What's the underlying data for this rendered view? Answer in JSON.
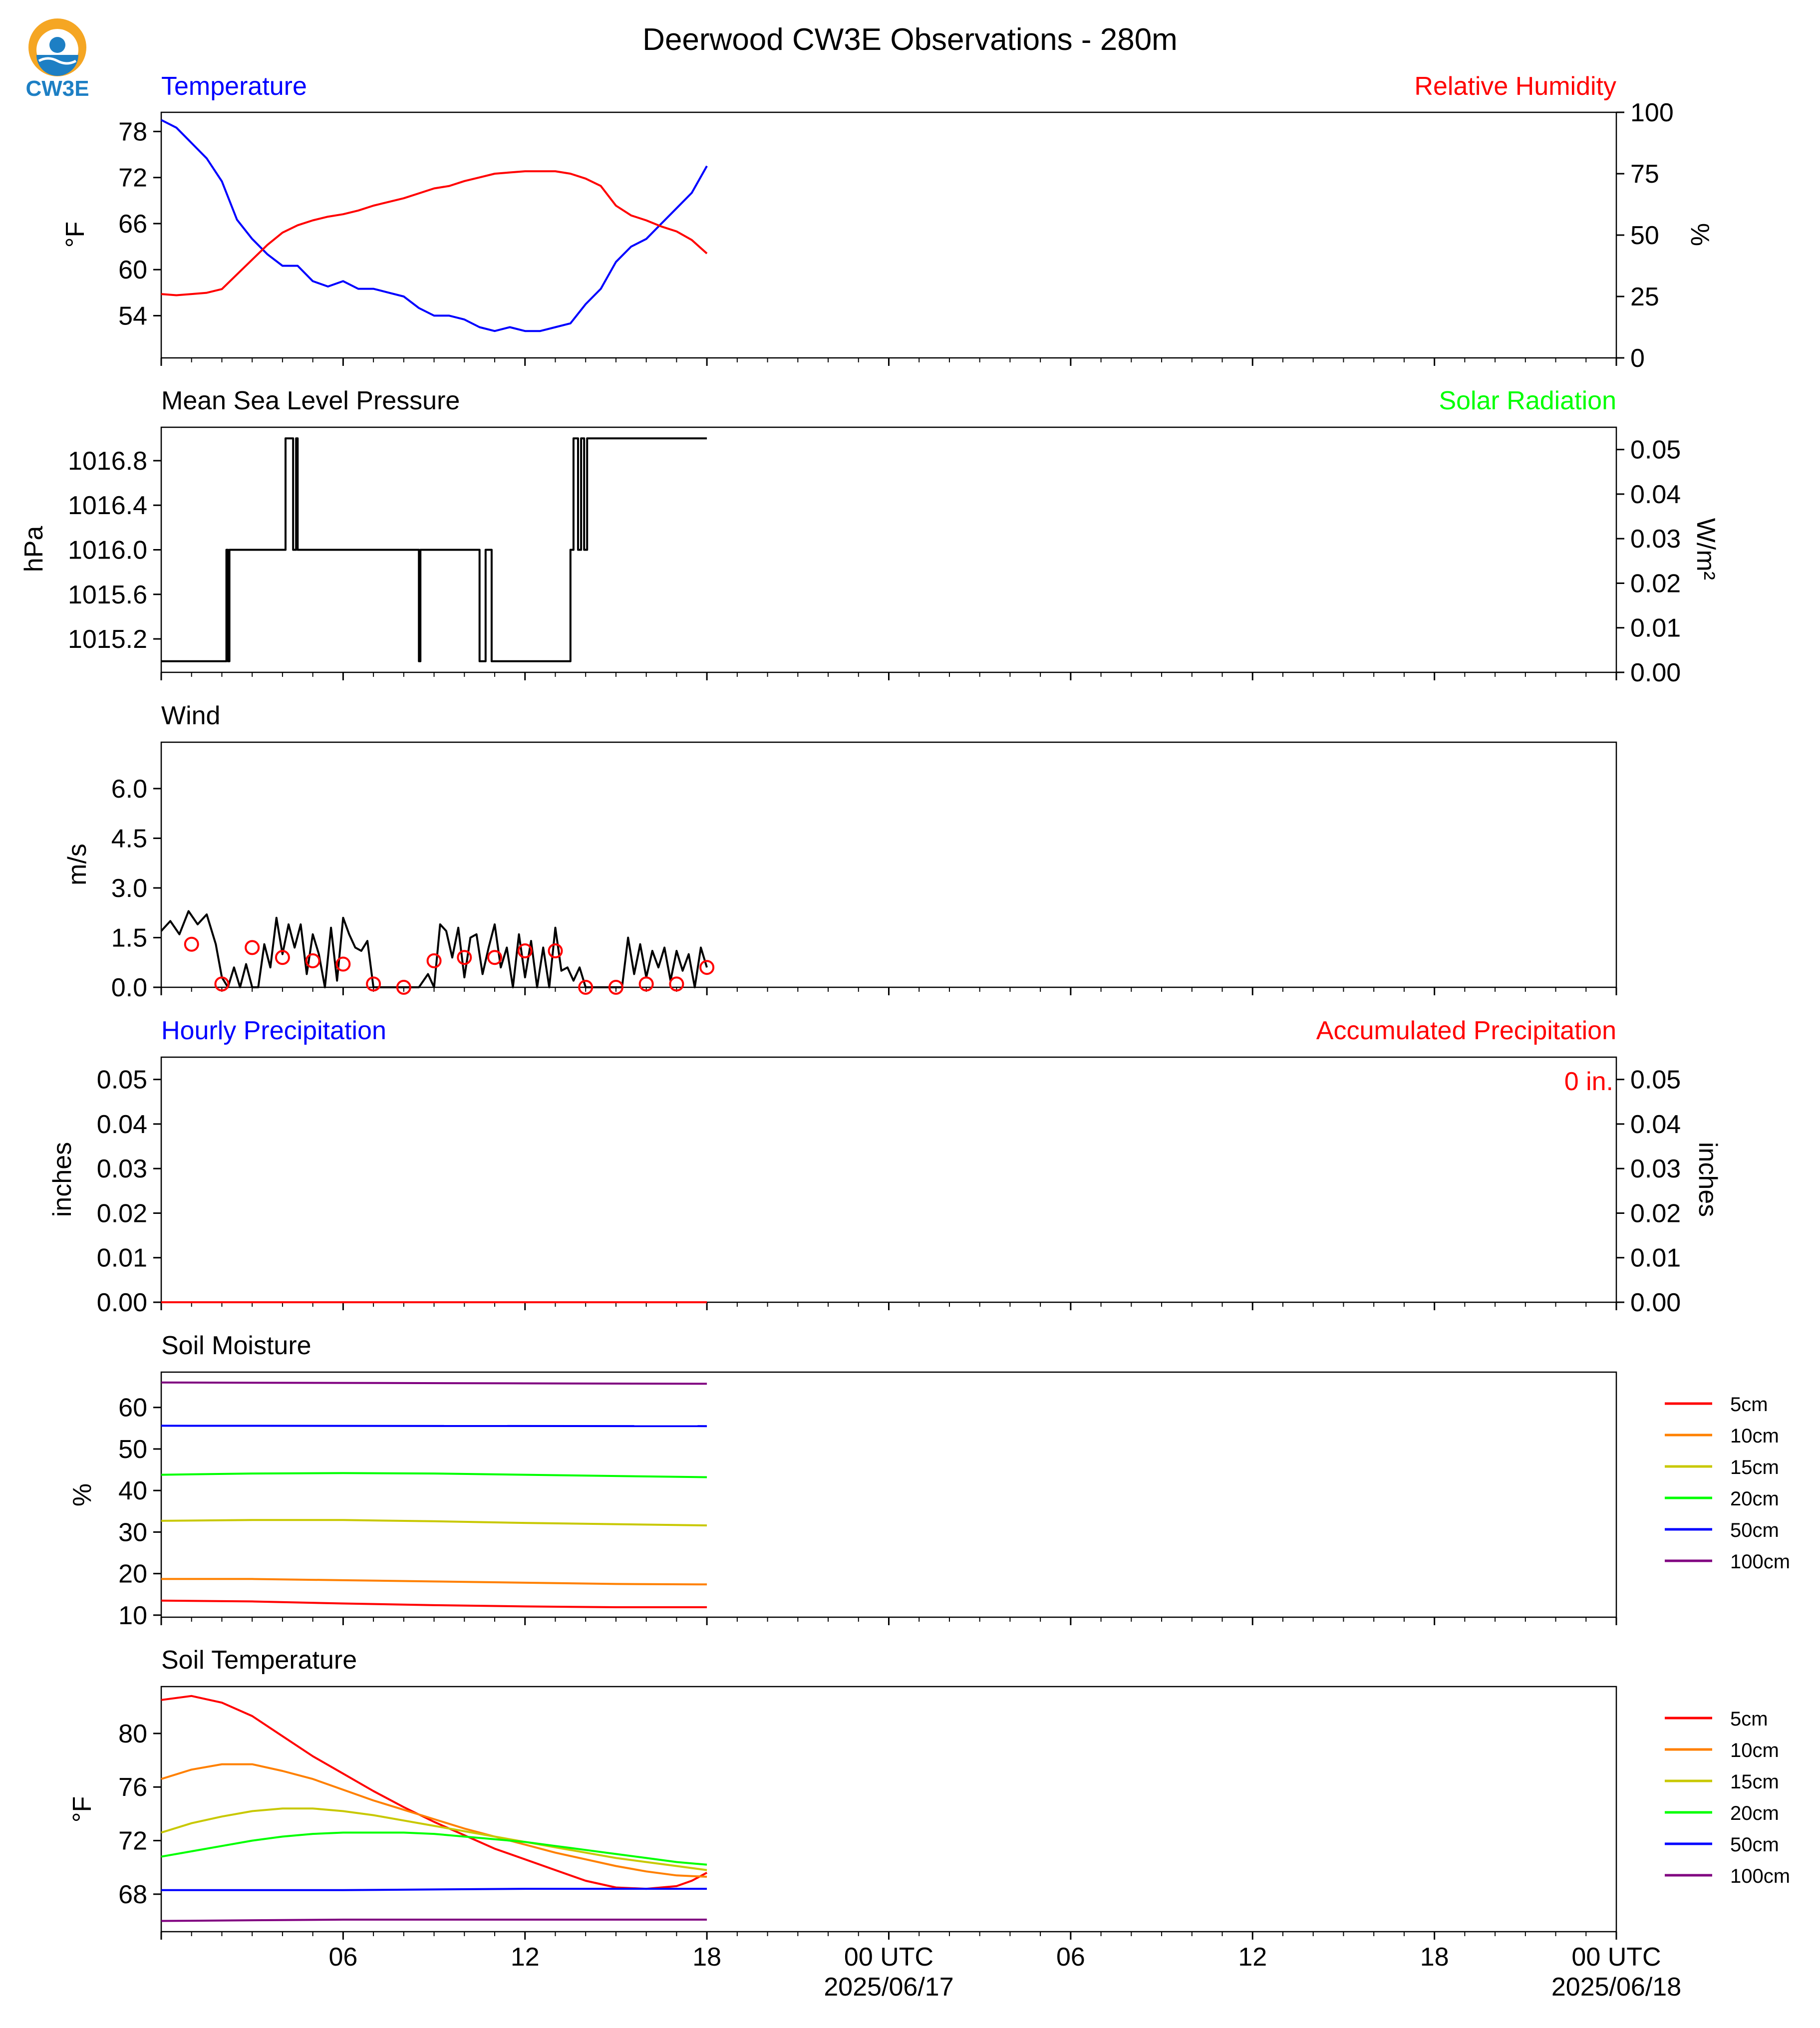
{
  "title": "Deerwood CW3E Observations - 280m",
  "logo": {
    "text": "CW3E",
    "icon": "cw3e-logo-icon",
    "colors": [
      "#f5a623",
      "#1d7fc4"
    ]
  },
  "x_axis": {
    "range_hours": [
      0,
      48
    ],
    "ticks": [
      {
        "hour": 6,
        "label": "06",
        "label2": ""
      },
      {
        "hour": 12,
        "label": "12",
        "label2": ""
      },
      {
        "hour": 18,
        "label": "18",
        "label2": ""
      },
      {
        "hour": 24,
        "label": "00 UTC",
        "label2": "2025/06/17"
      },
      {
        "hour": 30,
        "label": "06",
        "label2": ""
      },
      {
        "hour": 36,
        "label": "12",
        "label2": ""
      },
      {
        "hour": 42,
        "label": "18",
        "label2": ""
      },
      {
        "hour": 48,
        "label": "00 UTC",
        "label2": "2025/06/18"
      }
    ]
  },
  "panel_titles": {
    "temperature": "Temperature",
    "humidity": "Relative Humidity",
    "pressure": "Mean Sea Level Pressure",
    "solar": "Solar Radiation",
    "wind": "Wind",
    "hourly_precip": "Hourly Precipitation",
    "accum_precip": "Accumulated Precipitation",
    "soil_moisture": "Soil Moisture",
    "soil_temperature": "Soil Temperature"
  },
  "axis_labels": {
    "temp_left": "°F",
    "temp_right": "%",
    "pressure_left": "hPa",
    "pressure_right": "W/m²",
    "wind_left": "m/s",
    "precip_left": "inches",
    "precip_right": "inches",
    "soilm_left": "%",
    "soilt_left": "°F"
  },
  "accum_precip_total": "0 in.",
  "colors": {
    "temperature": "#0000ff",
    "humidity": "#ff0000",
    "pressure": "#000000",
    "solar": "#00ff00",
    "wind": "#000000",
    "wind_barb": "#ff0000",
    "hourly_precip": "#0000ff",
    "accum_precip": "#ff0000",
    "depths": [
      "#ff0000",
      "#ff8000",
      "#c8c800",
      "#00ff00",
      "#0000ff",
      "#800080"
    ]
  },
  "legend_depths": [
    "5cm",
    "10cm",
    "15cm",
    "20cm",
    "50cm",
    "100cm"
  ],
  "chart_data": [
    {
      "id": "temp-rh",
      "type": "line",
      "title": "Temperature",
      "ylabel": "°F",
      "ylim": [
        48.5,
        80.5
      ],
      "yticks": [
        54,
        60,
        66,
        72,
        78
      ],
      "y2label": "%",
      "y2lim": [
        0,
        100
      ],
      "y2ticks": [
        0,
        25,
        50,
        75,
        100
      ],
      "series": [
        {
          "name": "Temperature",
          "axis": "left",
          "x": [
            0,
            0.5,
            1,
            1.5,
            2,
            2.5,
            3,
            3.5,
            4,
            4.5,
            5,
            5.5,
            6,
            6.5,
            7,
            7.5,
            8,
            8.5,
            9,
            9.5,
            10,
            10.5,
            11,
            11.5,
            12,
            12.5,
            13,
            13.5,
            14,
            14.5,
            15,
            15.5,
            16,
            16.5,
            17,
            17.5,
            18
          ],
          "y": [
            79.5,
            78.5,
            76.5,
            74.5,
            71.5,
            66.5,
            64,
            62,
            60.5,
            60.5,
            58.5,
            57.8,
            58.5,
            57.5,
            57.5,
            57,
            56.5,
            55,
            54,
            54,
            53.5,
            52.5,
            52,
            52.5,
            52,
            52,
            52.5,
            53,
            55.5,
            57.5,
            61,
            63,
            64,
            66,
            68,
            70,
            73.5
          ]
        },
        {
          "name": "Relative Humidity",
          "axis": "right",
          "x": [
            0,
            0.5,
            1,
            1.5,
            2,
            2.5,
            3,
            3.5,
            4,
            4.5,
            5,
            5.5,
            6,
            6.5,
            7,
            7.5,
            8,
            8.5,
            9,
            9.5,
            10,
            10.5,
            11,
            11.5,
            12,
            12.5,
            13,
            13.5,
            14,
            14.5,
            15,
            15.5,
            16,
            16.5,
            17,
            17.5,
            18
          ],
          "y": [
            26,
            25.5,
            26,
            26.5,
            28,
            34,
            40,
            46,
            51,
            54,
            56,
            57.5,
            58.5,
            60,
            62,
            63.5,
            65,
            67,
            69,
            70,
            72,
            73.5,
            75,
            75.5,
            76,
            76,
            76,
            75,
            73,
            70,
            62,
            58,
            56,
            53.5,
            51.5,
            48,
            42.5
          ]
        }
      ]
    },
    {
      "id": "pressure",
      "type": "line",
      "title": "Mean Sea Level Pressure",
      "ylabel": "hPa",
      "ylim": [
        1014.9,
        1017.1
      ],
      "yticks": [
        1015.2,
        1015.6,
        1016.0,
        1016.4,
        1016.8
      ],
      "y2label": "W/m²",
      "y2lim": [
        0,
        0.055
      ],
      "y2ticks": [
        0.0,
        0.01,
        0.02,
        0.03,
        0.04,
        0.05
      ],
      "series": [
        {
          "name": "Mean Sea Level Pressure",
          "axis": "left",
          "x": [
            0,
            2.15,
            2.15,
            2.2,
            2.2,
            2.25,
            2.25,
            4.1,
            4.1,
            4.35,
            4.35,
            4.45,
            4.45,
            4.5,
            4.5,
            4.6,
            4.6,
            8.5,
            8.5,
            8.55,
            8.55,
            10.5,
            10.5,
            10.7,
            10.7,
            10.9,
            10.9,
            13.5,
            13.5,
            13.6,
            13.6,
            13.75,
            13.75,
            13.85,
            13.85,
            13.95,
            13.95,
            14.05,
            14.05,
            18
          ],
          "y": [
            1015.0,
            1015.0,
            1016.0,
            1016.0,
            1015.0,
            1015.0,
            1016.0,
            1016.0,
            1017.0,
            1017.0,
            1016.0,
            1016.0,
            1017.0,
            1017.0,
            1016.0,
            1016.0,
            1016.0,
            1016.0,
            1015.0,
            1015.0,
            1016.0,
            1016.0,
            1015.0,
            1015.0,
            1016.0,
            1016.0,
            1015.0,
            1015.0,
            1016.0,
            1016.0,
            1017.0,
            1017.0,
            1016.0,
            1016.0,
            1017.0,
            1017.0,
            1016.0,
            1016.0,
            1017.0,
            1017.0
          ]
        },
        {
          "name": "Solar Radiation",
          "axis": "right",
          "x": [],
          "y": []
        }
      ]
    },
    {
      "id": "wind",
      "type": "line",
      "title": "Wind",
      "ylabel": "m/s",
      "ylim": [
        0,
        7.4
      ],
      "yticks": [
        0.0,
        1.5,
        3.0,
        4.5,
        6.0
      ],
      "series": [
        {
          "name": "Wind Speed",
          "x": [
            0,
            0.3,
            0.6,
            0.9,
            1.2,
            1.5,
            1.8,
            2.0,
            2.2,
            2.4,
            2.6,
            2.8,
            3.0,
            3.2,
            3.4,
            3.6,
            3.8,
            4.0,
            4.2,
            4.4,
            4.6,
            4.8,
            5.0,
            5.2,
            5.4,
            5.6,
            5.8,
            6.0,
            6.2,
            6.4,
            6.6,
            6.8,
            7.0,
            7.5,
            8.0,
            8.5,
            8.8,
            9.0,
            9.2,
            9.4,
            9.6,
            9.8,
            10.0,
            10.2,
            10.4,
            10.6,
            10.8,
            11.0,
            11.2,
            11.4,
            11.6,
            11.8,
            12.0,
            12.2,
            12.4,
            12.6,
            12.8,
            13.0,
            13.2,
            13.4,
            13.6,
            13.8,
            14.0,
            14.5,
            15.0,
            15.2,
            15.4,
            15.6,
            15.8,
            16.0,
            16.2,
            16.4,
            16.6,
            16.8,
            17.0,
            17.2,
            17.4,
            17.6,
            17.8,
            18.0
          ],
          "y": [
            1.7,
            2.0,
            1.6,
            2.3,
            1.9,
            2.2,
            1.3,
            0.3,
            0.0,
            0.6,
            0.0,
            0.7,
            0.0,
            0.0,
            1.3,
            0.6,
            2.1,
            1.0,
            1.9,
            1.2,
            1.9,
            0.4,
            1.6,
            1.0,
            0.0,
            1.8,
            0.2,
            2.1,
            1.6,
            1.2,
            1.1,
            1.4,
            0.0,
            0.0,
            0.0,
            0.0,
            0.4,
            0.0,
            1.9,
            1.7,
            0.9,
            1.8,
            0.3,
            1.5,
            1.6,
            0.4,
            1.2,
            1.9,
            0.6,
            1.2,
            0.0,
            1.6,
            0.3,
            1.4,
            0.0,
            1.2,
            0.0,
            1.8,
            0.5,
            0.6,
            0.2,
            0.6,
            0.0,
            0.0,
            0.0,
            0.0,
            1.5,
            0.4,
            1.3,
            0.3,
            1.1,
            0.6,
            1.2,
            0.2,
            1.1,
            0.5,
            1.0,
            0.0,
            1.2,
            0.6
          ]
        },
        {
          "name": "Wind Direction Markers",
          "type": "scatter",
          "x": [
            1,
            2,
            3,
            4,
            5,
            6,
            7,
            8,
            9,
            10,
            11,
            12,
            13,
            14,
            15,
            16,
            17,
            18
          ],
          "y": [
            1.3,
            0.1,
            1.2,
            0.9,
            0.8,
            0.7,
            0.1,
            0.0,
            0.8,
            0.9,
            0.9,
            1.1,
            1.1,
            0.0,
            0.0,
            0.1,
            0.1,
            0.6
          ]
        }
      ]
    },
    {
      "id": "precip",
      "type": "line",
      "title": "Hourly Precipitation",
      "ylabel": "inches",
      "ylim": [
        0,
        0.055
      ],
      "yticks": [
        0.0,
        0.01,
        0.02,
        0.03,
        0.04,
        0.05
      ],
      "y2label": "inches",
      "y2lim": [
        0,
        0.055
      ],
      "y2ticks": [
        0.0,
        0.01,
        0.02,
        0.03,
        0.04,
        0.05
      ],
      "series": [
        {
          "name": "Hourly Precipitation",
          "axis": "left",
          "x": [
            0,
            18
          ],
          "y": [
            0,
            0
          ]
        },
        {
          "name": "Accumulated Precipitation",
          "axis": "right",
          "x": [
            0,
            18
          ],
          "y": [
            0,
            0
          ]
        }
      ]
    },
    {
      "id": "soil-moisture",
      "type": "line",
      "title": "Soil Moisture",
      "ylabel": "%",
      "ylim": [
        9.5,
        68.5
      ],
      "yticks": [
        10,
        20,
        30,
        40,
        50,
        60
      ],
      "series": [
        {
          "name": "5cm",
          "x": [
            0,
            3,
            6,
            9,
            12,
            15,
            18
          ],
          "y": [
            13.5,
            13.3,
            12.8,
            12.4,
            12.1,
            11.9,
            11.9
          ]
        },
        {
          "name": "10cm",
          "x": [
            0,
            3,
            6,
            9,
            12,
            15,
            18
          ],
          "y": [
            18.7,
            18.7,
            18.4,
            18.1,
            17.8,
            17.5,
            17.4
          ]
        },
        {
          "name": "15cm",
          "x": [
            0,
            3,
            6,
            9,
            12,
            15,
            18
          ],
          "y": [
            32.7,
            32.9,
            32.9,
            32.6,
            32.2,
            31.9,
            31.6
          ]
        },
        {
          "name": "20cm",
          "x": [
            0,
            3,
            6,
            9,
            12,
            15,
            18
          ],
          "y": [
            43.8,
            44.1,
            44.2,
            44.1,
            43.8,
            43.5,
            43.2
          ]
        },
        {
          "name": "50cm",
          "x": [
            0,
            18
          ],
          "y": [
            55.6,
            55.5
          ]
        },
        {
          "name": "100cm",
          "x": [
            0,
            6,
            12,
            18
          ],
          "y": [
            66.0,
            65.9,
            65.8,
            65.7
          ]
        }
      ]
    },
    {
      "id": "soil-temperature",
      "type": "line",
      "title": "Soil Temperature",
      "ylabel": "°F",
      "ylim": [
        65.2,
        83.5
      ],
      "yticks": [
        68,
        72,
        76,
        80
      ],
      "series": [
        {
          "name": "5cm",
          "x": [
            0,
            1,
            2,
            3,
            4,
            5,
            6,
            7,
            8,
            9,
            10,
            11,
            12,
            13,
            14,
            15,
            16,
            17,
            17.5,
            18
          ],
          "y": [
            82.5,
            82.8,
            82.3,
            81.3,
            79.8,
            78.3,
            77.0,
            75.7,
            74.5,
            73.4,
            72.4,
            71.4,
            70.6,
            69.8,
            69.0,
            68.5,
            68.4,
            68.6,
            69.0,
            69.6
          ]
        },
        {
          "name": "10cm",
          "x": [
            0,
            1,
            2,
            3,
            4,
            5,
            6,
            7,
            8,
            9,
            10,
            11,
            12,
            13,
            14,
            15,
            16,
            17,
            18
          ],
          "y": [
            76.6,
            77.3,
            77.7,
            77.7,
            77.2,
            76.6,
            75.8,
            75.0,
            74.3,
            73.6,
            72.9,
            72.3,
            71.7,
            71.1,
            70.6,
            70.1,
            69.7,
            69.4,
            69.3
          ]
        },
        {
          "name": "15cm",
          "x": [
            0,
            1,
            2,
            3,
            4,
            5,
            6,
            7,
            8,
            9,
            10,
            11,
            12,
            13,
            14,
            15,
            16,
            17,
            18
          ],
          "y": [
            72.6,
            73.3,
            73.8,
            74.2,
            74.4,
            74.4,
            74.2,
            73.9,
            73.5,
            73.1,
            72.7,
            72.3,
            71.9,
            71.5,
            71.1,
            70.7,
            70.4,
            70.1,
            69.8
          ]
        },
        {
          "name": "20cm",
          "x": [
            0,
            1,
            2,
            3,
            4,
            5,
            6,
            7,
            8,
            9,
            10,
            11,
            12,
            13,
            14,
            15,
            16,
            17,
            18
          ],
          "y": [
            70.8,
            71.2,
            71.6,
            72.0,
            72.3,
            72.5,
            72.6,
            72.6,
            72.6,
            72.5,
            72.3,
            72.1,
            71.9,
            71.6,
            71.3,
            71.0,
            70.7,
            70.4,
            70.2
          ]
        },
        {
          "name": "50cm",
          "x": [
            0,
            6,
            12,
            18
          ],
          "y": [
            68.3,
            68.3,
            68.4,
            68.4
          ]
        },
        {
          "name": "100cm",
          "x": [
            0,
            6,
            12,
            18
          ],
          "y": [
            66.0,
            66.1,
            66.1,
            66.1
          ]
        }
      ]
    }
  ]
}
